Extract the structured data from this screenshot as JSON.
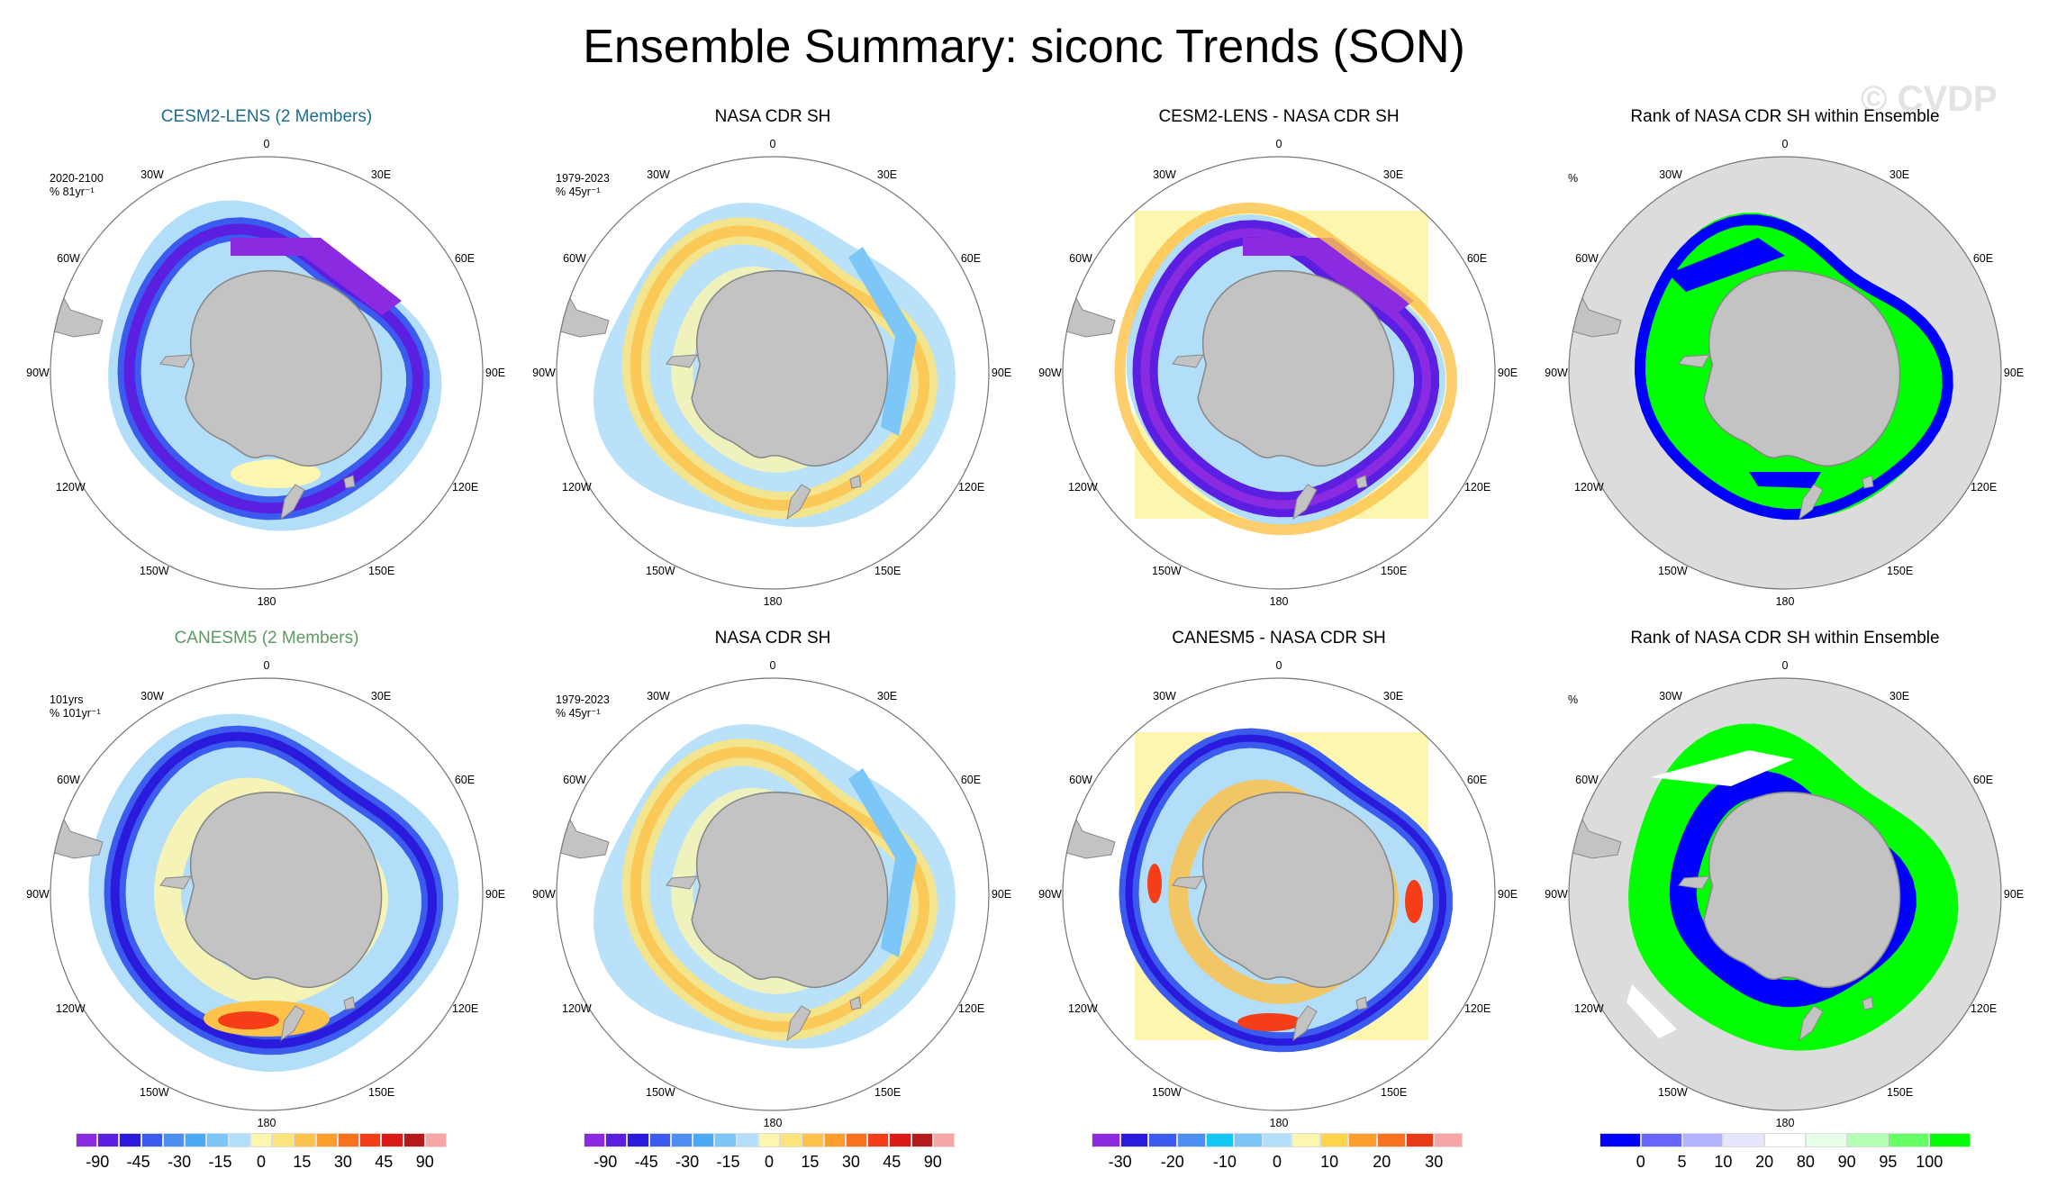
{
  "title": "Ensemble Summary: siconc Trends (SON)",
  "watermark": "© CVDP",
  "colors": {
    "ice_land": "#c3c3c3",
    "rank_bg": "#dcdcdc",
    "cesm_title": "#1c6e91",
    "canesm_title": "#5e9a62"
  },
  "lon_labels": [
    "0",
    "30E",
    "60E",
    "90E",
    "120E",
    "150E",
    "180",
    "150W",
    "120W",
    "90W",
    "60W",
    "30W"
  ],
  "panels": [
    {
      "title": "CESM2-LENS (2 Members)",
      "title_color": "cesm_title",
      "info": [
        "2020-2100",
        "% 81yr⁻¹"
      ],
      "kind": "cesm_trend"
    },
    {
      "title": "NASA CDR SH",
      "info": [
        "1979-2023",
        "% 45yr⁻¹"
      ],
      "kind": "obs"
    },
    {
      "title": "CESM2-LENS - NASA CDR SH",
      "info": [],
      "kind": "cesm_diff"
    },
    {
      "title": "Rank of NASA CDR SH within Ensemble",
      "info": [
        "%"
      ],
      "kind": "rank1"
    },
    {
      "title": "CANESM5 (2 Members)",
      "title_color": "canesm_title",
      "info": [
        "101yrs",
        "% 101yr⁻¹"
      ],
      "kind": "canesm_trend"
    },
    {
      "title": "NASA CDR SH",
      "info": [
        "1979-2023",
        "% 45yr⁻¹"
      ],
      "kind": "obs"
    },
    {
      "title": "CANESM5 - NASA CDR SH",
      "info": [],
      "kind": "canesm_diff"
    },
    {
      "title": "Rank of NASA CDR SH within Ensemble",
      "info": [
        "%"
      ],
      "kind": "rank2"
    }
  ],
  "colorbars": [
    {
      "colors": [
        "#8a2be2",
        "#5a1fe0",
        "#2a1bdc",
        "#3a5bee",
        "#4d8ef2",
        "#4aa8f5",
        "#7cc6f8",
        "#b3def9",
        "#fcf6ae",
        "#fde47a",
        "#fdc24a",
        "#fc9d2c",
        "#f9701f",
        "#f53e17",
        "#dd1a1a",
        "#b41a1a",
        "#f7a6a6"
      ],
      "labels": [
        "-90",
        "-45",
        "-30",
        "-15",
        "0",
        "15",
        "30",
        "45",
        "90"
      ]
    },
    {
      "colors": [
        "#8a2be2",
        "#5a1fe0",
        "#2a1bdc",
        "#3a5bee",
        "#4d8ef2",
        "#4aa8f5",
        "#7cc6f8",
        "#b3def9",
        "#fcf6ae",
        "#fde47a",
        "#fdc24a",
        "#fc9d2c",
        "#f9701f",
        "#f53e17",
        "#dd1a1a",
        "#b41a1a",
        "#f7a6a6"
      ],
      "labels": [
        "-90",
        "-45",
        "-30",
        "-15",
        "0",
        "15",
        "30",
        "45",
        "90"
      ]
    },
    {
      "colors": [
        "#8a2be2",
        "#2a1bdc",
        "#3a5bee",
        "#4d8ef2",
        "#13c8f5",
        "#7cc6f8",
        "#b3def9",
        "#fcf6ae",
        "#fdd54a",
        "#fc9d2c",
        "#f9701f",
        "#e83a17",
        "#f7a6a6"
      ],
      "labels": [
        "-30",
        "-20",
        "-10",
        "0",
        "10",
        "20",
        "30"
      ]
    },
    {
      "colors": [
        "#0000ff",
        "#6666ff",
        "#b3b3ff",
        "#e6e6ff",
        "#ffffff",
        "#e6ffe6",
        "#b3ffb3",
        "#66ff66",
        "#00ff00"
      ],
      "labels": [
        "0",
        "5",
        "10",
        "20",
        "80",
        "90",
        "95",
        "100"
      ]
    }
  ]
}
